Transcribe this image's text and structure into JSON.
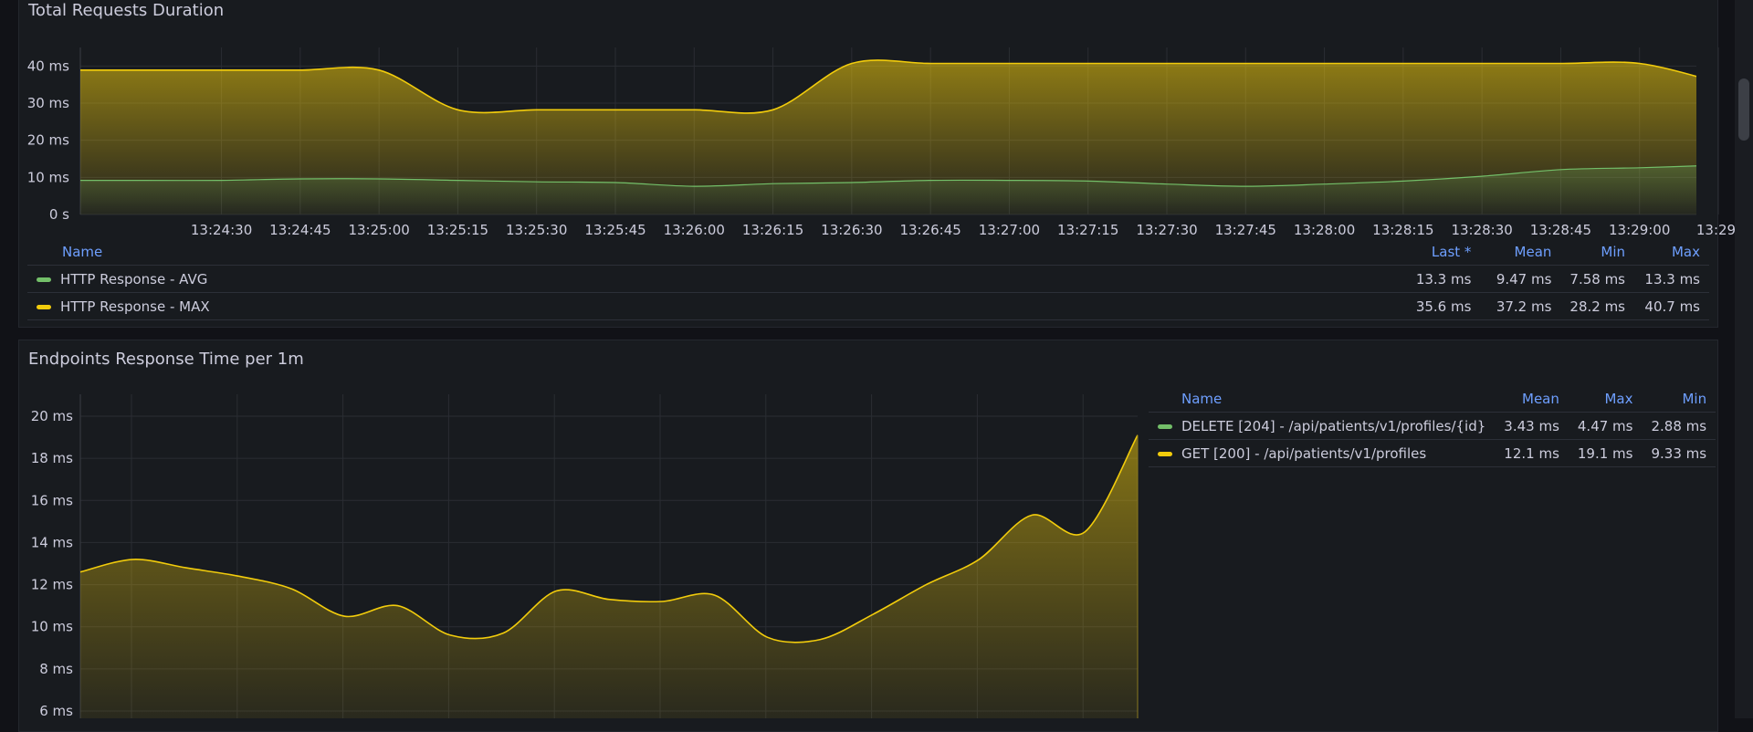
{
  "colors": {
    "green": "#73bf69",
    "yellow": "#f2cc0c",
    "header": "#6e9fff",
    "axis": "#ccccdc"
  },
  "panel1": {
    "title": "Total Requests Duration",
    "y_ticks": [
      "40 ms",
      "30 ms",
      "20 ms",
      "10 ms",
      "0 s"
    ],
    "x_ticks": [
      "13:24:30",
      "13:24:45",
      "13:25:00",
      "13:25:15",
      "13:25:30",
      "13:25:45",
      "13:26:00",
      "13:26:15",
      "13:26:30",
      "13:26:45",
      "13:27:00",
      "13:27:15",
      "13:27:30",
      "13:27:45",
      "13:28:00",
      "13:28:15",
      "13:28:30",
      "13:28:45",
      "13:29:00",
      "13:29:"
    ],
    "legend": {
      "headers": {
        "name": "Name",
        "last": "Last *",
        "mean": "Mean",
        "min": "Min",
        "max": "Max"
      },
      "rows": [
        {
          "name": "HTTP Response - AVG",
          "last": "13.3 ms",
          "mean": "9.47 ms",
          "min": "7.58 ms",
          "max": "13.3 ms",
          "color": "#73bf69"
        },
        {
          "name": "HTTP Response - MAX",
          "last": "35.6 ms",
          "mean": "37.2 ms",
          "min": "28.2 ms",
          "max": "40.7 ms",
          "color": "#f2cc0c"
        }
      ]
    }
  },
  "panel2": {
    "title": "Endpoints Response Time per 1m",
    "y_ticks": [
      "20 ms",
      "18 ms",
      "16 ms",
      "14 ms",
      "12 ms",
      "10 ms",
      "8 ms",
      "6 ms"
    ],
    "legend": {
      "headers": {
        "name": "Name",
        "mean": "Mean",
        "max": "Max",
        "min": "Min"
      },
      "rows": [
        {
          "name": "DELETE [204] - /api/patients/v1/profiles/{id}",
          "mean": "3.43 ms",
          "max": "4.47 ms",
          "min": "2.88 ms",
          "color": "#73bf69"
        },
        {
          "name": "GET [200] - /api/patients/v1/profiles",
          "mean": "12.1 ms",
          "max": "19.1 ms",
          "min": "9.33 ms",
          "color": "#f2cc0c"
        }
      ]
    }
  },
  "chart_data": [
    {
      "type": "area",
      "title": "Total Requests Duration",
      "xlabel": "",
      "ylabel": "",
      "ylim": [
        0,
        45
      ],
      "x": [
        "13:24:00",
        "13:24:15",
        "13:24:30",
        "13:24:45",
        "13:25:00",
        "13:25:15",
        "13:25:30",
        "13:25:45",
        "13:26:00",
        "13:26:15",
        "13:26:30",
        "13:26:45",
        "13:27:00",
        "13:27:15",
        "13:27:30",
        "13:27:45",
        "13:28:00",
        "13:28:15",
        "13:28:30",
        "13:28:45",
        "13:29:00",
        "13:29:10"
      ],
      "series": [
        {
          "name": "HTTP Response - MAX",
          "color": "#f2cc0c",
          "values": [
            38.9,
            38.9,
            38.9,
            38.9,
            38.9,
            28.2,
            28.2,
            28.2,
            28.2,
            28.2,
            40.7,
            40.7,
            40.7,
            40.7,
            40.7,
            40.7,
            40.7,
            40.7,
            40.7,
            40.7,
            40.7,
            35.6
          ]
        },
        {
          "name": "HTTP Response - AVG",
          "color": "#73bf69",
          "values": [
            9.2,
            9.2,
            9.2,
            9.6,
            9.6,
            9.2,
            8.8,
            8.6,
            7.6,
            8.3,
            8.6,
            9.2,
            9.2,
            9.0,
            8.2,
            7.6,
            8.2,
            9.0,
            10.3,
            12.1,
            12.6,
            13.3
          ]
        }
      ],
      "legend": "bottom"
    },
    {
      "type": "area",
      "title": "Endpoints Response Time per 1m",
      "xlabel": "",
      "ylabel": "",
      "ylim": [
        6,
        21
      ],
      "x": [
        0,
        1,
        2,
        3,
        4,
        5,
        6,
        7,
        8,
        9,
        10,
        11,
        12,
        13,
        14,
        15,
        16,
        17,
        18,
        19,
        20
      ],
      "series": [
        {
          "name": "GET [200] - /api/patients/v1/profiles",
          "color": "#f2cc0c",
          "values": [
            12.6,
            13.2,
            12.8,
            12.4,
            11.8,
            10.5,
            11.0,
            9.6,
            9.7,
            11.7,
            11.3,
            11.2,
            11.5,
            9.5,
            9.4,
            10.6,
            12.0,
            13.2,
            15.3,
            14.5,
            19.1
          ]
        }
      ],
      "legend": "right"
    }
  ]
}
